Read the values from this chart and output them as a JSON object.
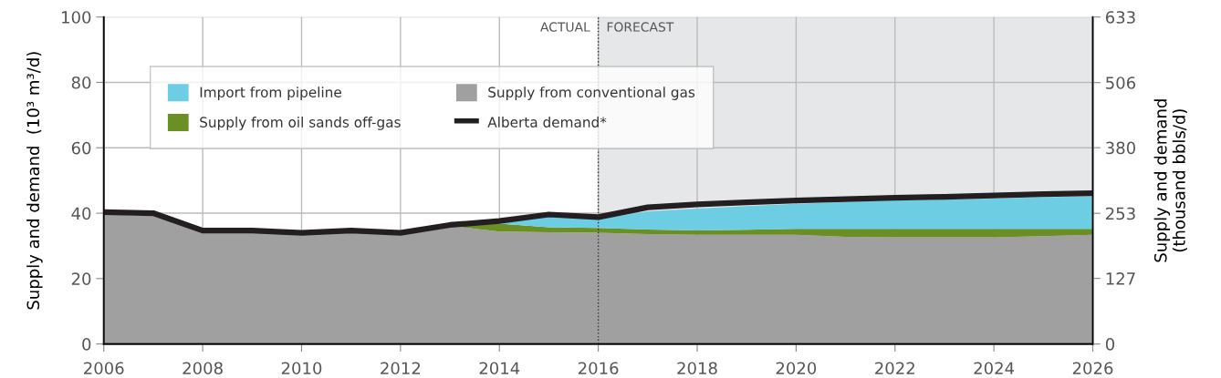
{
  "chart_data": {
    "type": "area",
    "stacked": true,
    "ylabel": "Supply and demand  (10³ m³/d)",
    "y2label": "Supply and demand\n(thousand bbls/d)",
    "x": [
      2006,
      2007,
      2008,
      2009,
      2010,
      2011,
      2012,
      2013,
      2014,
      2015,
      2016,
      2017,
      2018,
      2019,
      2020,
      2021,
      2022,
      2023,
      2024,
      2025,
      2026
    ],
    "series": [
      {
        "name": "Supply from conventional gas",
        "color": "#a0a0a0",
        "values": [
          39.6,
          39.2,
          34.2,
          34.2,
          33.4,
          34.2,
          33.4,
          36.1,
          34.4,
          34.2,
          34.0,
          33.6,
          33.4,
          33.4,
          33.4,
          32.8,
          32.6,
          32.6,
          32.6,
          33.0,
          33.4
        ]
      },
      {
        "name": "Supply from oil sands off-gas",
        "color": "#6a8f25",
        "values": [
          null,
          null,
          null,
          null,
          null,
          null,
          null,
          0,
          2.4,
          1.5,
          1.5,
          1.4,
          1.3,
          1.5,
          1.8,
          2.4,
          2.6,
          2.6,
          2.6,
          2.2,
          1.8
        ]
      },
      {
        "name": "Import from pipeline",
        "color": "#6ccde3",
        "values": [
          null,
          null,
          null,
          null,
          null,
          null,
          null,
          null,
          0,
          3.5,
          2.7,
          5.6,
          6.7,
          7.3,
          7.7,
          8.2,
          8.7,
          9.0,
          9.3,
          9.7,
          10.0
        ]
      },
      {
        "name": "Alberta demand*",
        "type": "line",
        "color": "#231f20",
        "values": [
          40.3,
          40.0,
          34.7,
          34.7,
          34.0,
          34.7,
          34.0,
          36.4,
          37.6,
          39.6,
          38.8,
          41.8,
          42.7,
          43.3,
          43.9,
          44.3,
          44.7,
          45.0,
          45.4,
          45.8,
          46.1
        ]
      }
    ],
    "xlim": [
      2006,
      2026
    ],
    "xticks": [
      2006,
      2008,
      2010,
      2012,
      2014,
      2016,
      2018,
      2020,
      2022,
      2024,
      2026
    ],
    "ylim": [
      0,
      100
    ],
    "yticks": [
      0,
      20,
      40,
      60,
      80,
      100
    ],
    "y2lim": [
      0,
      633
    ],
    "y2ticks": [
      0,
      127,
      253,
      380,
      506,
      633
    ],
    "ref_lines": [
      {
        "axis": "x",
        "value": 2016,
        "label": "ACTUAL",
        "color": "#333333",
        "line_style": "dotted"
      }
    ],
    "bands": [
      {
        "axis": "x",
        "from": 2016,
        "to": 2026,
        "label": "FORECAST",
        "color": "#e6e7e9"
      }
    ],
    "grid": true,
    "legend": "top left"
  }
}
